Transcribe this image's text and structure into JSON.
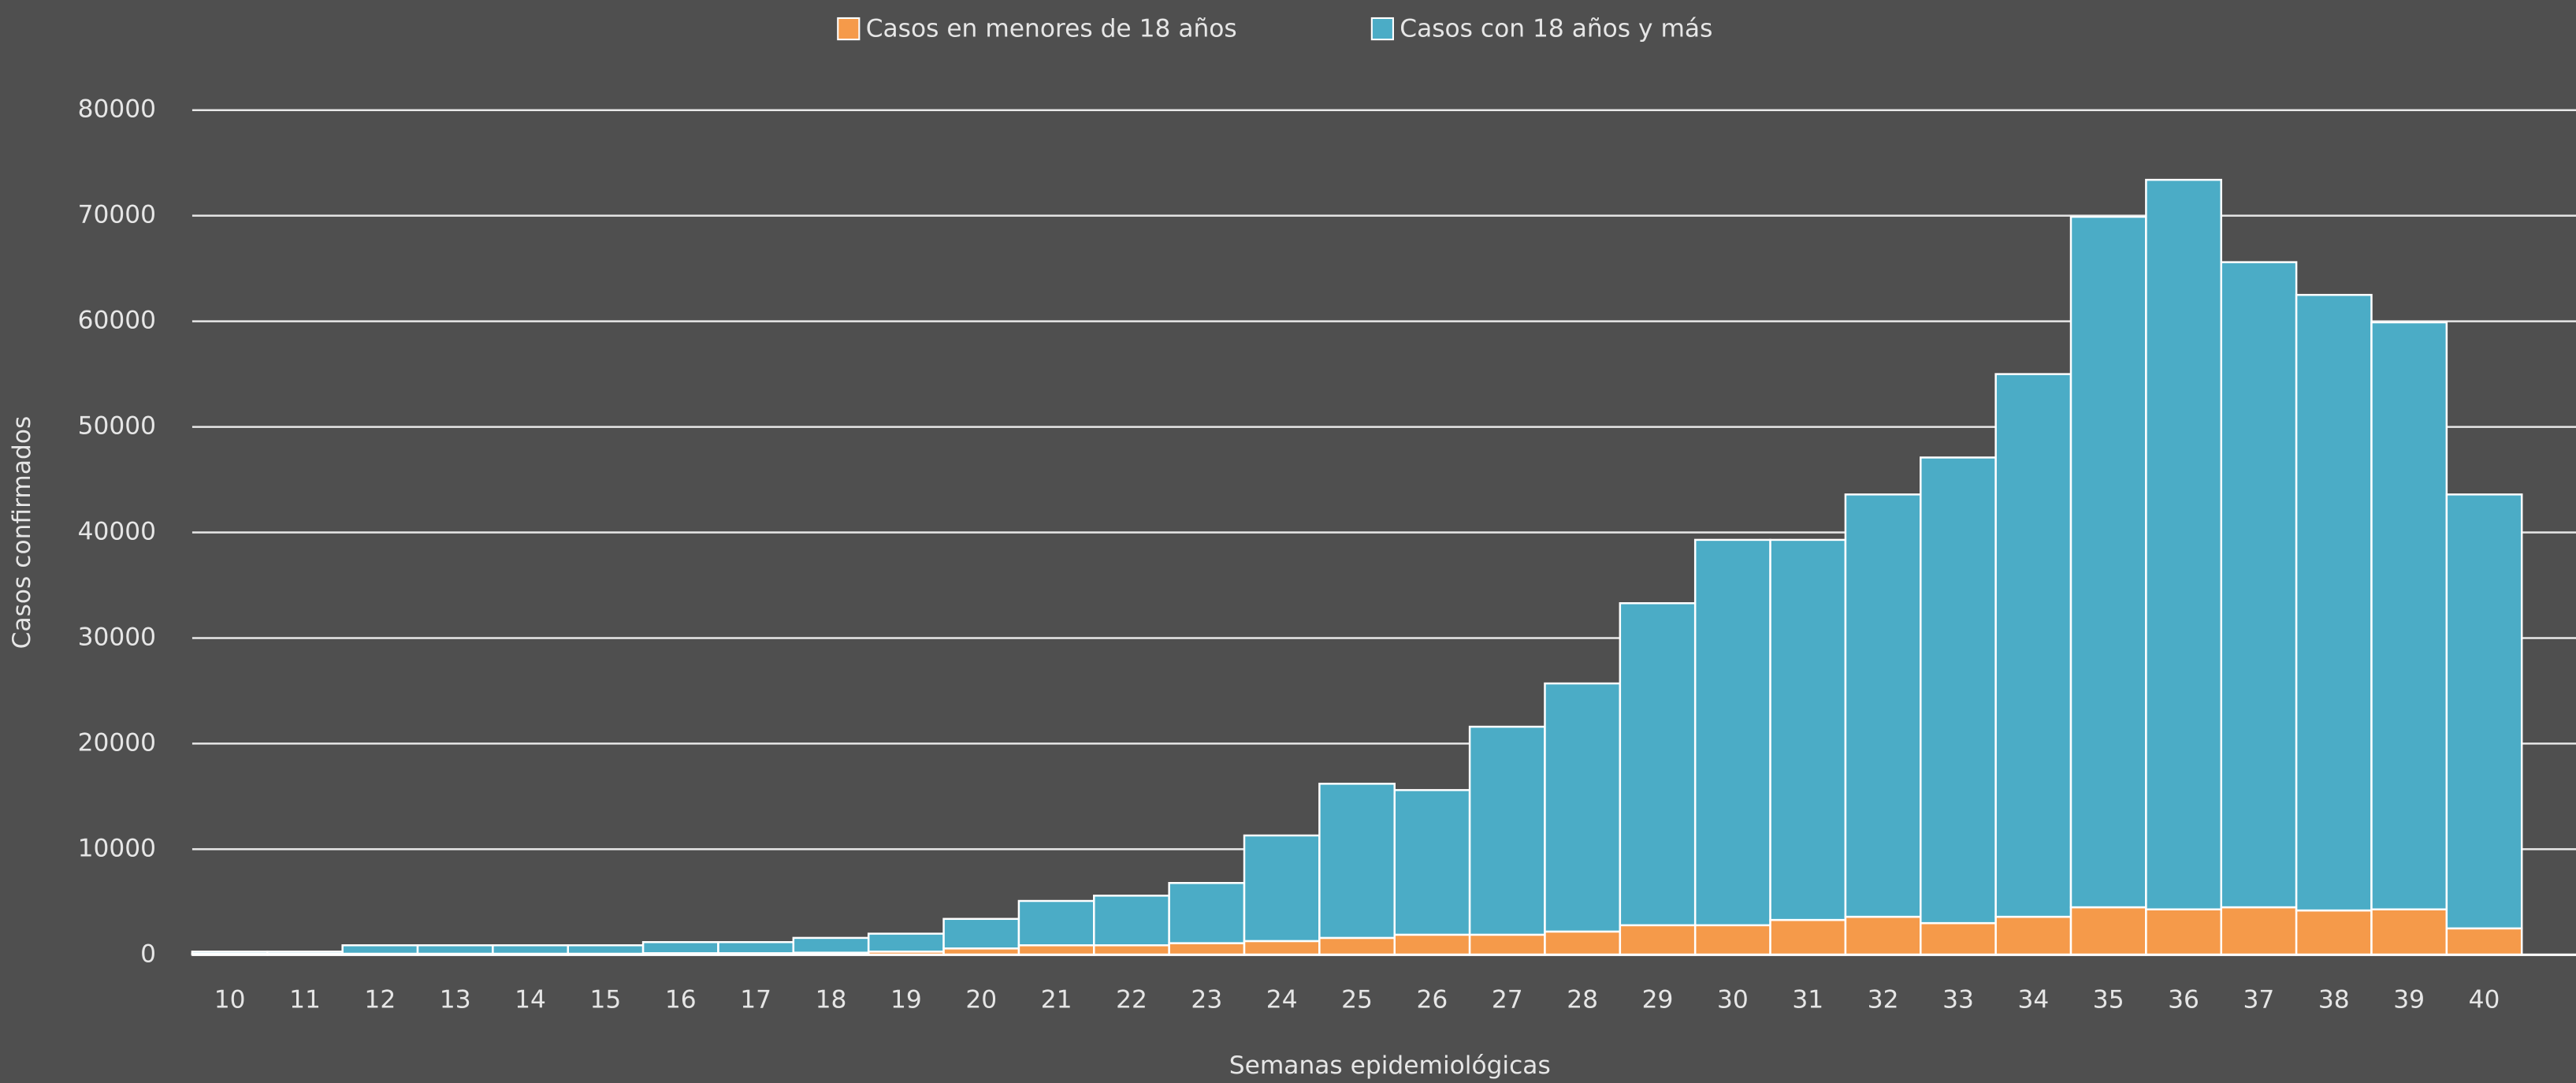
{
  "chart_data": {
    "type": "stacked_bar",
    "x_label": "Semanas epidemiológicas",
    "y_label": "Casos confirmados",
    "categories": [
      "10",
      "11",
      "12",
      "13",
      "14",
      "15",
      "16",
      "17",
      "18",
      "19",
      "20",
      "21",
      "22",
      "23",
      "24",
      "25",
      "26",
      "27",
      "28",
      "29",
      "30",
      "31",
      "32",
      "33",
      "34",
      "35",
      "36",
      "37",
      "38",
      "39",
      "40"
    ],
    "series": [
      {
        "name": "Casos en menores de 18 años",
        "color": "#f59a4a",
        "values": [
          100,
          100,
          100,
          100,
          100,
          100,
          150,
          150,
          200,
          300,
          600,
          900,
          900,
          1100,
          1300,
          1600,
          1900,
          1900,
          2200,
          2800,
          2800,
          3300,
          3600,
          3000,
          3600,
          4500,
          4300,
          4500,
          4200,
          4300,
          2500
        ]
      },
      {
        "name": "Casos con 18 años y más",
        "color": "#4bacc6",
        "values": [
          200,
          200,
          800,
          800,
          800,
          800,
          1050,
          1050,
          1400,
          1700,
          2800,
          4200,
          4700,
          5700,
          10000,
          14600,
          13700,
          19700,
          23500,
          30500,
          36500,
          36000,
          40000,
          44100,
          51400,
          65400,
          69100,
          61100,
          58300,
          55600,
          41100
        ]
      }
    ],
    "ylim": [
      0,
      80000
    ],
    "yticks": [
      0,
      10000,
      20000,
      30000,
      40000,
      50000,
      60000,
      70000,
      80000
    ],
    "grid": true
  }
}
